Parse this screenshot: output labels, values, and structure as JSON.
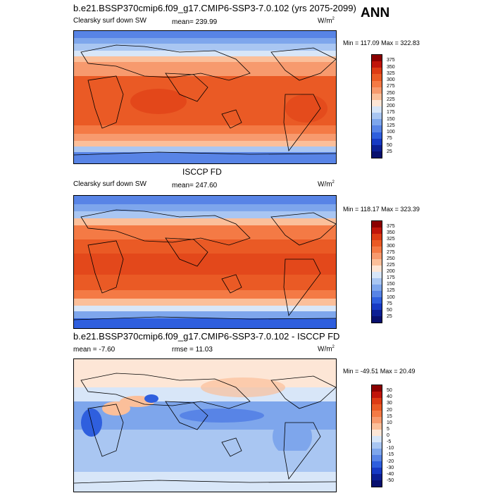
{
  "season": "ANN",
  "units_base": "W/m",
  "units_exp": "2",
  "panel1": {
    "title": "b.e21.BSSP370cmip6.f09_g17.CMIP6-SSP3-7.0.102 (yrs 2075-2099)",
    "variable": "Clearsky surf down SW",
    "stat": "mean= 239.99",
    "minmax": "Min = 117.09 Max = 322.83",
    "levels": [
      "375",
      "350",
      "325",
      "300",
      "275",
      "250",
      "225",
      "200",
      "175",
      "150",
      "125",
      "100",
      "75",
      "50",
      "25"
    ],
    "colors": [
      "#8b0000",
      "#c0150a",
      "#dd3b14",
      "#ea5a25",
      "#f47a45",
      "#f79a6e",
      "#fbbf9a",
      "#fde6d6",
      "#d8e6f8",
      "#a9c6f2",
      "#7ea6ec",
      "#5884e6",
      "#2f5fde",
      "#173ac4",
      "#0c1f94",
      "#08106e"
    ]
  },
  "panel2": {
    "title": "ISCCP FD",
    "variable": "Clearsky surf down SW",
    "stat": "mean= 247.60",
    "minmax": "Min = 118.17 Max = 323.39",
    "levels": [
      "375",
      "350",
      "325",
      "300",
      "275",
      "250",
      "225",
      "200",
      "175",
      "150",
      "125",
      "100",
      "75",
      "50",
      "25"
    ],
    "colors": [
      "#8b0000",
      "#c0150a",
      "#dd3b14",
      "#ea5a25",
      "#f47a45",
      "#f79a6e",
      "#fbbf9a",
      "#fde6d6",
      "#d8e6f8",
      "#a9c6f2",
      "#7ea6ec",
      "#5884e6",
      "#2f5fde",
      "#173ac4",
      "#0c1f94",
      "#08106e"
    ]
  },
  "panel3": {
    "title": "b.e21.BSSP370cmip6.f09_g17.CMIP6-SSP3-7.0.102 - ISCCP FD",
    "stat": "mean =  -7.60",
    "rmse": "rmse =  11.03",
    "minmax": "Min = -49.51 Max =  20.49",
    "levels": [
      "50",
      "40",
      "30",
      "20",
      "15",
      "10",
      "5",
      "0",
      "-5",
      "-10",
      "-15",
      "-20",
      "-30",
      "-40",
      "-50"
    ],
    "colors": [
      "#8b0000",
      "#c0150a",
      "#dd3b14",
      "#ea5a25",
      "#f47a45",
      "#f79a6e",
      "#fbbf9a",
      "#fde6d6",
      "#d8e6f8",
      "#a9c6f2",
      "#7ea6ec",
      "#5884e6",
      "#2f5fde",
      "#173ac4",
      "#0c1f94",
      "#08106e"
    ]
  }
}
